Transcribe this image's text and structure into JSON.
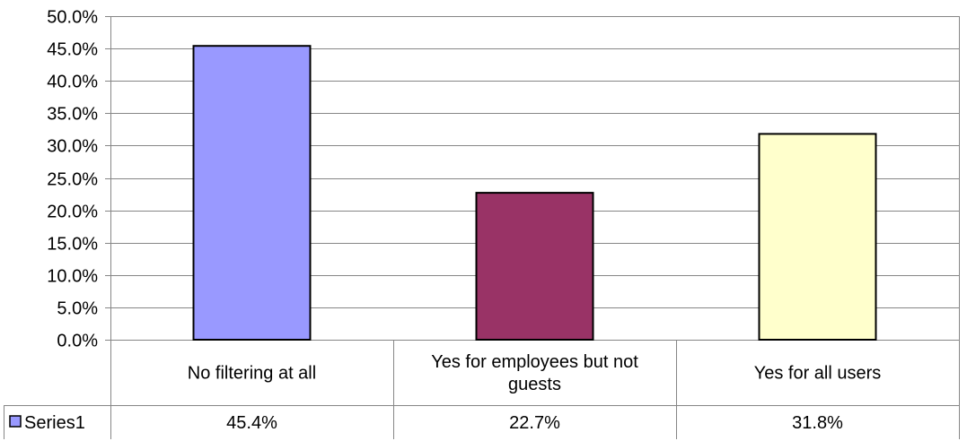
{
  "chart_data": {
    "type": "bar",
    "categories": [
      [
        "No filtering at all"
      ],
      [
        "Yes for employees but not",
        "guests"
      ],
      [
        "Yes for all users"
      ]
    ],
    "series": [
      {
        "name": "Series1",
        "values": [
          45.4,
          22.7,
          31.8
        ],
        "value_labels": [
          "45.4%",
          "22.7%",
          "31.8%"
        ]
      }
    ],
    "ylim": [
      0,
      50
    ],
    "yticks": [
      "0.0%",
      "5.0%",
      "10.0%",
      "15.0%",
      "20.0%",
      "25.0%",
      "30.0%",
      "35.0%",
      "40.0%",
      "45.0%",
      "50.0%"
    ],
    "grid": true,
    "legend": "data-table",
    "colors": {
      "bars": [
        "#9999ff",
        "#993366",
        "#ffffcc"
      ],
      "grid": "#868686",
      "bar_stroke": "#000000"
    }
  }
}
